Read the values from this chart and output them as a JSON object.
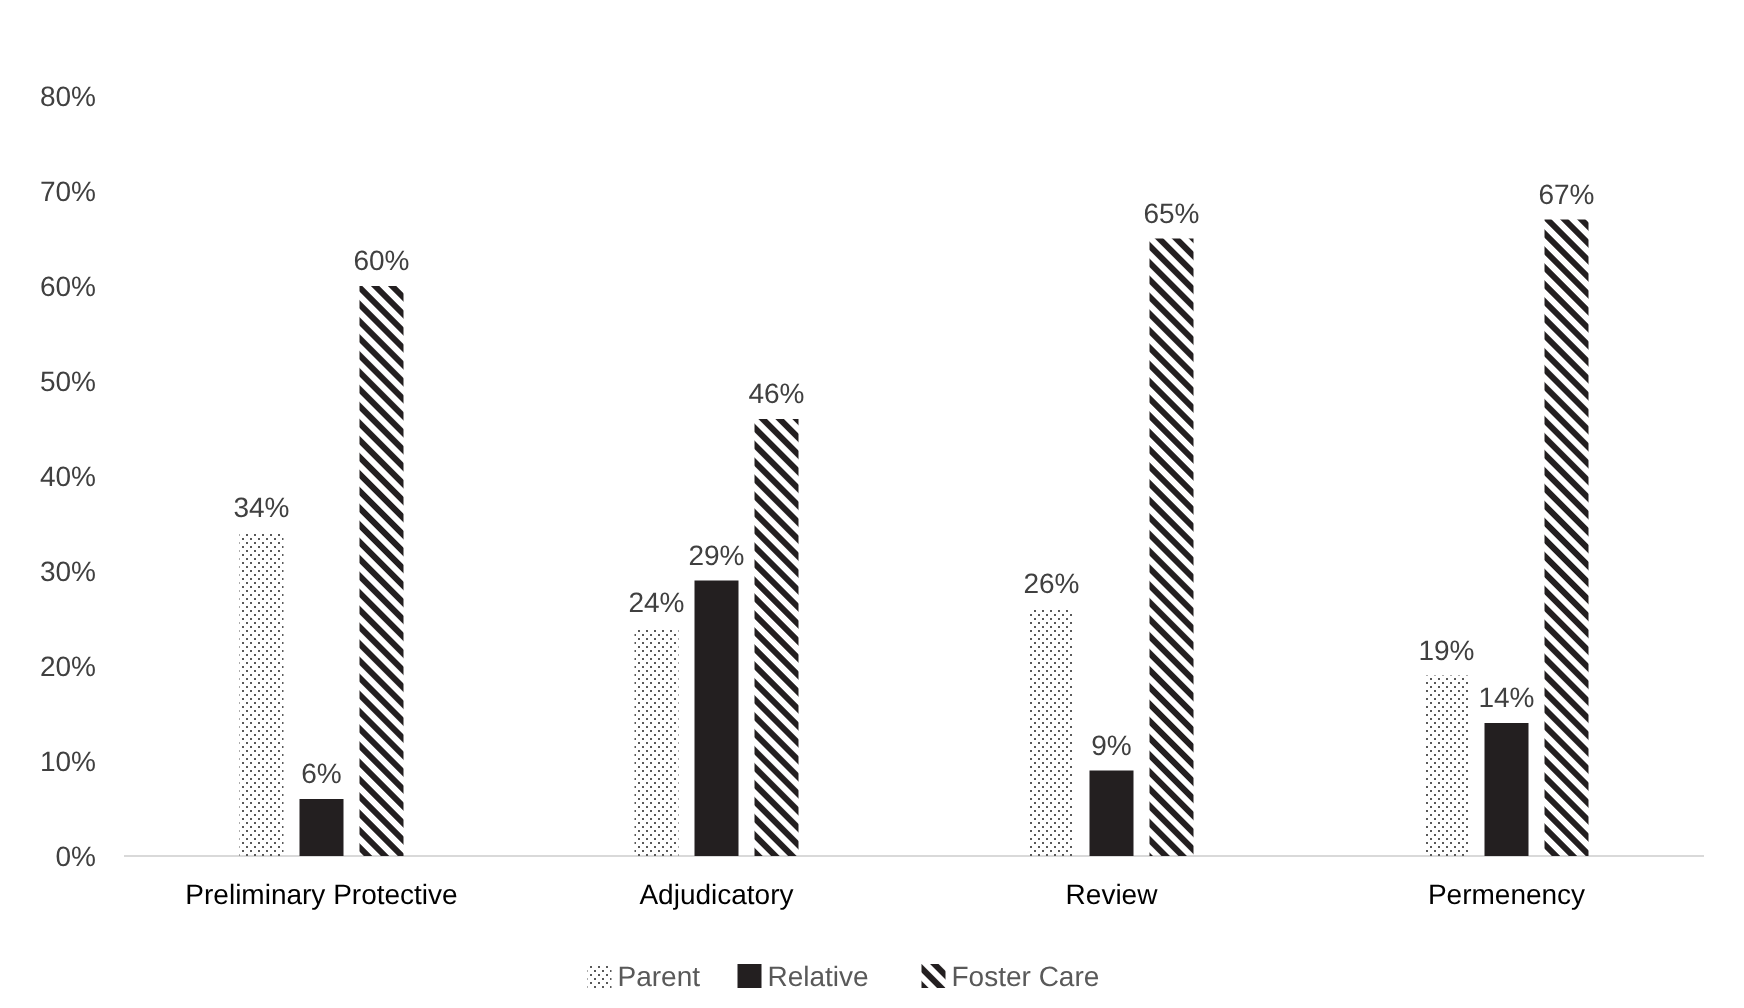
{
  "chart_data": {
    "type": "bar",
    "categories": [
      "Preliminary Protective",
      "Adjudicatory",
      "Review",
      "Permenency"
    ],
    "series": [
      {
        "name": "Parent",
        "color": "#595959",
        "values": [
          34,
          24,
          26,
          19
        ],
        "value_labels": [
          "34%",
          "24%",
          "26%",
          "19%"
        ]
      },
      {
        "name": "Relative",
        "color": "#231f20",
        "values": [
          6,
          29,
          9,
          14
        ],
        "value_labels": [
          "6%",
          "29%",
          "9%",
          "14%"
        ]
      },
      {
        "name": "Foster Care",
        "color": "#231f20",
        "values": [
          60,
          46,
          65,
          67
        ],
        "value_labels": [
          "60%",
          "46%",
          "65%",
          "67%"
        ]
      }
    ],
    "ylim": [
      0,
      80
    ],
    "yticks": [
      {
        "value": 0,
        "label": "0%"
      },
      {
        "value": 10,
        "label": "10%"
      },
      {
        "value": 20,
        "label": "20%"
      },
      {
        "value": 30,
        "label": "30%"
      },
      {
        "value": 40,
        "label": "40%"
      },
      {
        "value": 50,
        "label": "50%"
      },
      {
        "value": 60,
        "label": "60%"
      },
      {
        "value": 70,
        "label": "70%"
      },
      {
        "value": 80,
        "label": "80%"
      }
    ],
    "grid": false,
    "legend": "bottom"
  }
}
